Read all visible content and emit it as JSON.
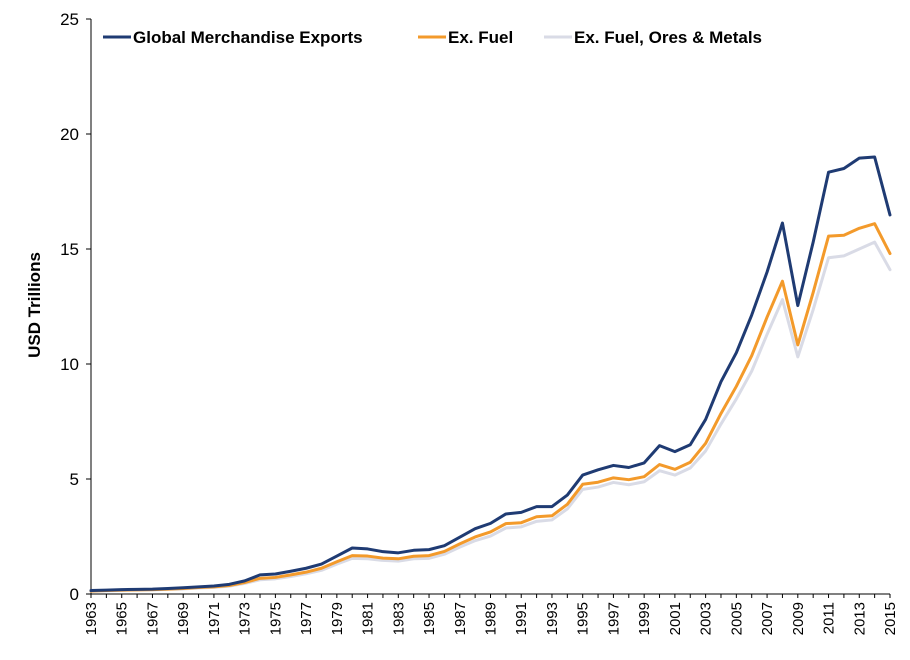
{
  "chart_data": {
    "type": "line",
    "title": "",
    "xlabel": "",
    "ylabel": "USD Trillions",
    "ylim": [
      0,
      25
    ],
    "yticks": [
      0,
      5,
      10,
      15,
      20,
      25
    ],
    "grid": false,
    "legend_position": "top-left",
    "x": [
      1963,
      1964,
      1965,
      1966,
      1967,
      1968,
      1969,
      1970,
      1971,
      1972,
      1973,
      1974,
      1975,
      1976,
      1977,
      1978,
      1979,
      1980,
      1981,
      1982,
      1983,
      1984,
      1985,
      1986,
      1987,
      1988,
      1989,
      1990,
      1991,
      1992,
      1993,
      1994,
      1995,
      1996,
      1997,
      1998,
      1999,
      2000,
      2001,
      2002,
      2003,
      2004,
      2005,
      2006,
      2007,
      2008,
      2009,
      2010,
      2011,
      2012,
      2013,
      2014,
      2015
    ],
    "xtick_labels": [
      "1963",
      "1965",
      "1967",
      "1969",
      "1971",
      "1973",
      "1975",
      "1977",
      "1979",
      "1981",
      "1983",
      "1985",
      "1987",
      "1989",
      "1991",
      "1993",
      "1995",
      "1997",
      "1999",
      "2001",
      "2003",
      "2005",
      "2007",
      "2009",
      "2011",
      "2013",
      "2015"
    ],
    "series": [
      {
        "name": "Global Merchandise Exports",
        "color": "#1f3b73",
        "values": [
          0.15,
          0.17,
          0.19,
          0.2,
          0.21,
          0.24,
          0.27,
          0.31,
          0.35,
          0.42,
          0.57,
          0.83,
          0.87,
          0.99,
          1.12,
          1.3,
          1.65,
          2.0,
          1.96,
          1.84,
          1.79,
          1.9,
          1.93,
          2.1,
          2.47,
          2.84,
          3.07,
          3.48,
          3.55,
          3.8,
          3.8,
          4.3,
          5.17,
          5.4,
          5.59,
          5.5,
          5.7,
          6.45,
          6.19,
          6.49,
          7.59,
          9.23,
          10.49,
          12.13,
          14.0,
          16.13,
          12.54,
          15.3,
          18.34,
          18.5,
          18.95,
          19.0,
          16.48
        ]
      },
      {
        "name": "Ex. Fuel",
        "color": "#f39a2b",
        "values": [
          0.13,
          0.15,
          0.17,
          0.18,
          0.19,
          0.21,
          0.24,
          0.28,
          0.31,
          0.37,
          0.5,
          0.68,
          0.72,
          0.83,
          0.95,
          1.12,
          1.4,
          1.67,
          1.65,
          1.56,
          1.53,
          1.64,
          1.67,
          1.85,
          2.18,
          2.48,
          2.7,
          3.06,
          3.1,
          3.36,
          3.4,
          3.9,
          4.77,
          4.86,
          5.05,
          4.97,
          5.1,
          5.63,
          5.42,
          5.73,
          6.55,
          7.85,
          9.03,
          10.36,
          12.04,
          13.6,
          10.83,
          13.11,
          15.56,
          15.6,
          15.9,
          16.1,
          14.8
        ]
      },
      {
        "name": "Ex. Fuel, Ores & Metals",
        "color": "#d9dbe6",
        "values": [
          0.12,
          0.14,
          0.16,
          0.17,
          0.18,
          0.2,
          0.22,
          0.26,
          0.29,
          0.34,
          0.46,
          0.62,
          0.66,
          0.76,
          0.88,
          1.03,
          1.3,
          1.55,
          1.53,
          1.46,
          1.43,
          1.53,
          1.55,
          1.73,
          2.04,
          2.32,
          2.52,
          2.87,
          2.92,
          3.16,
          3.22,
          3.7,
          4.55,
          4.65,
          4.85,
          4.75,
          4.88,
          5.36,
          5.17,
          5.48,
          6.22,
          7.39,
          8.48,
          9.69,
          11.29,
          12.8,
          10.31,
          12.36,
          14.62,
          14.7,
          15.0,
          15.3,
          14.1
        ]
      }
    ]
  }
}
